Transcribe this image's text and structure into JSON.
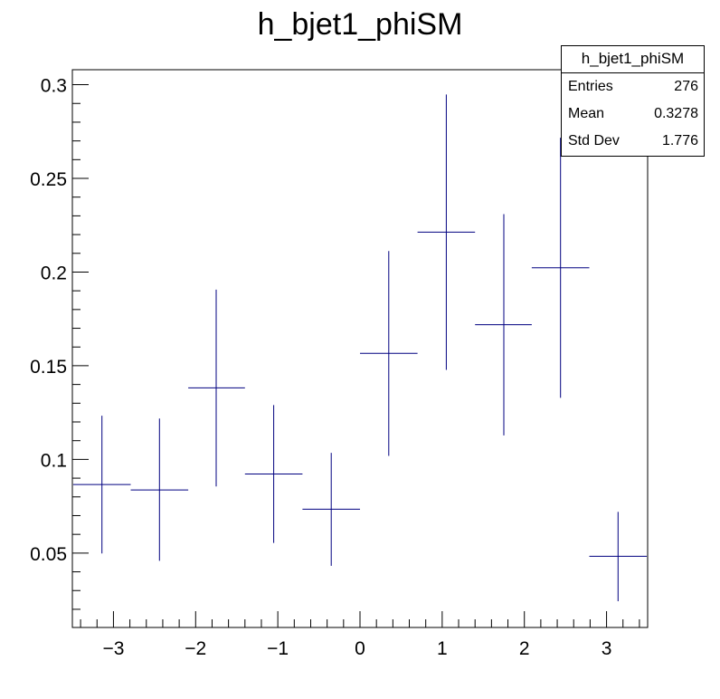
{
  "chart_data": {
    "type": "scatter",
    "title": "h_bjet1_phiSM",
    "xlabel": "",
    "ylabel": "",
    "xlim": [
      -3.5,
      3.5
    ],
    "ylim": [
      0.0103,
      0.308
    ],
    "x_ticks": [
      {
        "value": -3,
        "label": "−3"
      },
      {
        "value": -2,
        "label": "−2"
      },
      {
        "value": -1,
        "label": "−1"
      },
      {
        "value": 0,
        "label": "0"
      },
      {
        "value": 1,
        "label": "1"
      },
      {
        "value": 2,
        "label": "2"
      },
      {
        "value": 3,
        "label": "3"
      }
    ],
    "y_ticks": [
      {
        "value": 0.05,
        "label": "0.05"
      },
      {
        "value": 0.1,
        "label": "0.1"
      },
      {
        "value": 0.15,
        "label": "0.15"
      },
      {
        "value": 0.2,
        "label": "0.2"
      },
      {
        "value": 0.25,
        "label": "0.25"
      },
      {
        "value": 0.3,
        "label": "0.3"
      }
    ],
    "series": [
      {
        "color": "#000080",
        "points": [
          {
            "x": -3.14,
            "xlow": -3.49,
            "xhigh": -2.79,
            "y": 0.0866,
            "ylow": 0.0498,
            "yhigh": 0.1233
          },
          {
            "x": -2.44,
            "xlow": -2.79,
            "xhigh": -2.09,
            "y": 0.0837,
            "ylow": 0.0459,
            "yhigh": 0.1218
          },
          {
            "x": -1.75,
            "xlow": -2.09,
            "xhigh": -1.4,
            "y": 0.1382,
            "ylow": 0.0856,
            "yhigh": 0.1906
          },
          {
            "x": -1.05,
            "xlow": -1.4,
            "xhigh": -0.7,
            "y": 0.0922,
            "ylow": 0.0554,
            "yhigh": 0.129
          },
          {
            "x": -0.35,
            "xlow": -0.7,
            "xhigh": 0.0,
            "y": 0.0734,
            "ylow": 0.0432,
            "yhigh": 0.1035
          },
          {
            "x": 0.35,
            "xlow": 0.0,
            "xhigh": 0.7,
            "y": 0.1566,
            "ylow": 0.1019,
            "yhigh": 0.2112
          },
          {
            "x": 1.05,
            "xlow": 0.7,
            "xhigh": 1.4,
            "y": 0.2213,
            "ylow": 0.1478,
            "yhigh": 0.2948
          },
          {
            "x": 1.75,
            "xlow": 1.4,
            "xhigh": 2.09,
            "y": 0.1719,
            "ylow": 0.1128,
            "yhigh": 0.2309
          },
          {
            "x": 2.44,
            "xlow": 2.09,
            "xhigh": 2.79,
            "y": 0.2023,
            "ylow": 0.1329,
            "yhigh": 0.2717
          },
          {
            "x": 3.14,
            "xlow": 2.79,
            "xhigh": 3.49,
            "y": 0.0483,
            "ylow": 0.0243,
            "yhigh": 0.072
          }
        ]
      }
    ]
  },
  "stats": {
    "title": "h_bjet1_phiSM",
    "rows": [
      {
        "label": "Entries",
        "value": "276"
      },
      {
        "label": "Mean",
        "value": "0.3278"
      },
      {
        "label": "Std Dev",
        "value": "1.776"
      }
    ]
  }
}
